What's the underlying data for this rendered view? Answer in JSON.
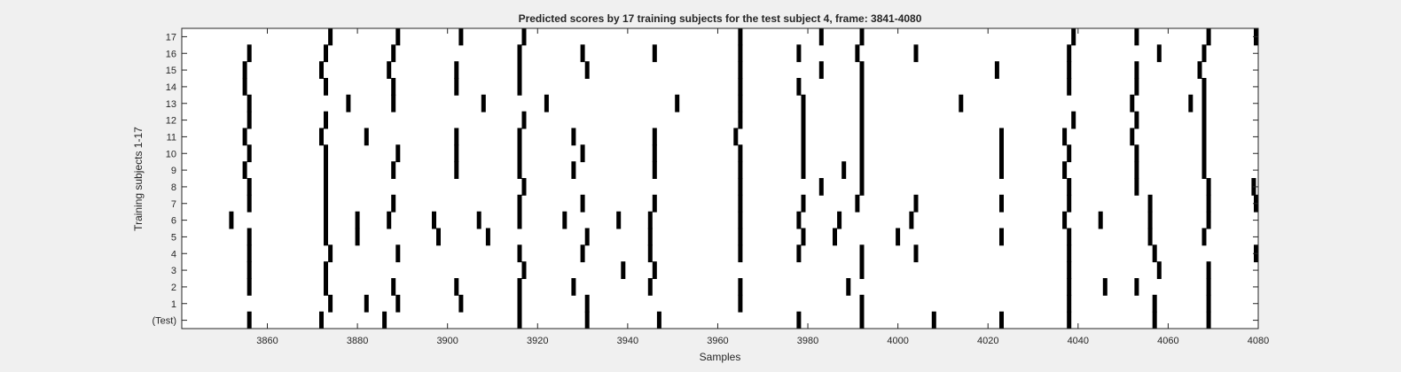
{
  "chart_data": {
    "type": "raster",
    "title": "Predicted scores by 17 training subjects for the test subject 4, frame: 3841-4080",
    "xlabel": "Samples",
    "ylabel": "Training subjects 1-17",
    "xlim": [
      3841,
      4080
    ],
    "xticks": [
      3860,
      3880,
      3900,
      3920,
      3940,
      3960,
      3980,
      4000,
      4020,
      4040,
      4060,
      4080
    ],
    "yticks": [
      "(Test)",
      "1",
      "2",
      "3",
      "4",
      "5",
      "6",
      "7",
      "8",
      "9",
      "10",
      "11",
      "12",
      "13",
      "14",
      "15",
      "16",
      "17"
    ],
    "grid": false,
    "colors": {
      "background": "#ffffff",
      "mark": "#000000",
      "figure": "#f0f0f0"
    },
    "rows": [
      {
        "label": "(Test)",
        "events": [
          3856,
          3872,
          3886,
          3916,
          3931,
          3947,
          3978,
          3992,
          4008,
          4023,
          4038,
          4057,
          4069
        ]
      },
      {
        "label": "1",
        "events": [
          3874,
          3882,
          3889,
          3903,
          3916,
          3931,
          3965,
          3992,
          4038,
          4057,
          4069
        ]
      },
      {
        "label": "2",
        "events": [
          3856,
          3873,
          3888,
          3902,
          3916,
          3928,
          3945,
          3965,
          3989,
          4038,
          4046,
          4053,
          4069
        ]
      },
      {
        "label": "3",
        "events": [
          3856,
          3873,
          3917,
          3939,
          3946,
          3992,
          4038,
          4058,
          4069
        ]
      },
      {
        "label": "4",
        "events": [
          3856,
          3874,
          3889,
          3916,
          3930,
          3945,
          3965,
          3978,
          3992,
          4004,
          4038,
          4057,
          4080
        ]
      },
      {
        "label": "5",
        "events": [
          3856,
          3873,
          3880,
          3898,
          3909,
          3931,
          3945,
          3965,
          3979,
          3986,
          4000,
          4023,
          4038,
          4056,
          4068
        ]
      },
      {
        "label": "6",
        "events": [
          3852,
          3873,
          3880,
          3887,
          3897,
          3907,
          3916,
          3926,
          3938,
          3945,
          3965,
          3978,
          3987,
          4003,
          4037,
          4045,
          4056,
          4069
        ]
      },
      {
        "label": "7",
        "events": [
          3856,
          3873,
          3888,
          3916,
          3930,
          3946,
          3965,
          3979,
          3991,
          4004,
          4023,
          4038,
          4056,
          4069,
          4080
        ]
      },
      {
        "label": "8",
        "events": [
          3856,
          3873,
          3917,
          3965,
          3983,
          3992,
          4038,
          4053,
          4069,
          4079
        ]
      },
      {
        "label": "9",
        "events": [
          3855,
          3873,
          3888,
          3902,
          3916,
          3928,
          3946,
          3965,
          3979,
          3988,
          3992,
          4023,
          4037,
          4053,
          4068
        ]
      },
      {
        "label": "10",
        "events": [
          3856,
          3873,
          3889,
          3902,
          3916,
          3930,
          3946,
          3965,
          3979,
          3992,
          4023,
          4038,
          4053,
          4068
        ]
      },
      {
        "label": "11",
        "events": [
          3855,
          3872,
          3882,
          3902,
          3916,
          3928,
          3946,
          3964,
          3979,
          3992,
          4023,
          4037,
          4052,
          4068
        ]
      },
      {
        "label": "12",
        "events": [
          3856,
          3873,
          3917,
          3965,
          3979,
          3992,
          4039,
          4053,
          4068
        ]
      },
      {
        "label": "13",
        "events": [
          3856,
          3878,
          3888,
          3908,
          3922,
          3951,
          3965,
          3979,
          3992,
          4014,
          4052,
          4065,
          4068
        ]
      },
      {
        "label": "14",
        "events": [
          3855,
          3873,
          3888,
          3902,
          3916,
          3965,
          3978,
          3992,
          4038,
          4053,
          4068
        ]
      },
      {
        "label": "15",
        "events": [
          3855,
          3872,
          3887,
          3902,
          3916,
          3931,
          3965,
          3983,
          3992,
          4022,
          4038,
          4053,
          4067
        ]
      },
      {
        "label": "16",
        "events": [
          3856,
          3873,
          3888,
          3916,
          3930,
          3946,
          3965,
          3978,
          3991,
          4004,
          4038,
          4058,
          4068
        ]
      },
      {
        "label": "17",
        "events": [
          3874,
          3889,
          3903,
          3917,
          3965,
          3983,
          3992,
          4039,
          4053,
          4069,
          4080
        ]
      }
    ]
  }
}
